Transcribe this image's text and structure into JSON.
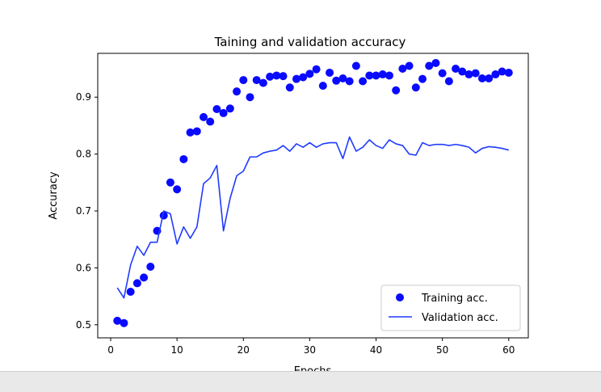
{
  "chart_data": {
    "type": "scatter+line",
    "title": "Taining and validation accuracy",
    "xlabel": "Epochs",
    "ylabel": "Accuracy",
    "xlim": [
      -1.95,
      62.95
    ],
    "ylim": [
      0.477,
      0.977
    ],
    "xticks": [
      0,
      10,
      20,
      30,
      40,
      50,
      60
    ],
    "yticks": [
      0.5,
      0.6,
      0.7,
      0.8,
      0.9
    ],
    "grid": false,
    "legend_placement": "lower-right",
    "series": [
      {
        "name": "Training acc.",
        "kind": "scatter",
        "color": "#0a0aff",
        "x": [
          1,
          2,
          3,
          4,
          5,
          6,
          7,
          8,
          9,
          10,
          11,
          12,
          13,
          14,
          15,
          16,
          17,
          18,
          19,
          20,
          21,
          22,
          23,
          24,
          25,
          26,
          27,
          28,
          29,
          30,
          31,
          32,
          33,
          34,
          35,
          36,
          37,
          38,
          39,
          40,
          41,
          42,
          43,
          44,
          45,
          46,
          47,
          48,
          49,
          50,
          51,
          52,
          53,
          54,
          55,
          56,
          57,
          58,
          59,
          60
        ],
        "y": [
          0.507,
          0.503,
          0.558,
          0.573,
          0.583,
          0.602,
          0.665,
          0.692,
          0.75,
          0.738,
          0.791,
          0.838,
          0.84,
          0.865,
          0.857,
          0.879,
          0.872,
          0.88,
          0.91,
          0.93,
          0.9,
          0.93,
          0.925,
          0.936,
          0.938,
          0.937,
          0.917,
          0.932,
          0.935,
          0.941,
          0.949,
          0.92,
          0.943,
          0.929,
          0.933,
          0.928,
          0.955,
          0.928,
          0.938,
          0.938,
          0.94,
          0.938,
          0.912,
          0.95,
          0.955,
          0.917,
          0.932,
          0.955,
          0.96,
          0.942,
          0.928,
          0.95,
          0.945,
          0.94,
          0.942,
          0.933,
          0.933,
          0.94,
          0.945,
          0.943
        ]
      },
      {
        "name": "Validation acc.",
        "kind": "line",
        "color": "#1f3bff",
        "x": [
          1,
          2,
          3,
          4,
          5,
          6,
          7,
          8,
          9,
          10,
          11,
          12,
          13,
          14,
          15,
          16,
          17,
          18,
          19,
          20,
          21,
          22,
          23,
          24,
          25,
          26,
          27,
          28,
          29,
          30,
          31,
          32,
          33,
          34,
          35,
          36,
          37,
          38,
          39,
          40,
          41,
          42,
          43,
          44,
          45,
          46,
          47,
          48,
          49,
          50,
          51,
          52,
          53,
          54,
          55,
          56,
          57,
          58,
          59,
          60
        ],
        "y": [
          0.565,
          0.547,
          0.605,
          0.638,
          0.622,
          0.645,
          0.645,
          0.7,
          0.695,
          0.642,
          0.672,
          0.652,
          0.672,
          0.748,
          0.758,
          0.78,
          0.665,
          0.722,
          0.762,
          0.77,
          0.795,
          0.795,
          0.802,
          0.805,
          0.807,
          0.815,
          0.805,
          0.818,
          0.812,
          0.82,
          0.812,
          0.818,
          0.82,
          0.82,
          0.792,
          0.83,
          0.805,
          0.812,
          0.825,
          0.815,
          0.81,
          0.825,
          0.818,
          0.815,
          0.8,
          0.798,
          0.82,
          0.815,
          0.817,
          0.817,
          0.815,
          0.817,
          0.815,
          0.812,
          0.802,
          0.81,
          0.813,
          0.812,
          0.81,
          0.807
        ]
      }
    ]
  }
}
